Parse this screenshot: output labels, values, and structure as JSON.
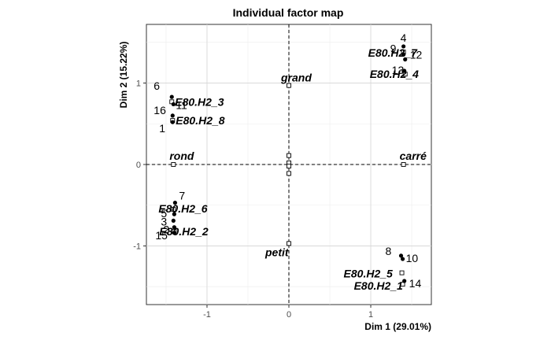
{
  "chart_data": {
    "type": "scatter",
    "title": "Individual factor map",
    "xlabel": "Dim 1 (29.01%)",
    "ylabel": "Dim 2 (15.22%)",
    "xlim": [
      -1.74,
      1.74
    ],
    "ylim": [
      -1.72,
      1.72
    ],
    "x_ticks": [
      -1,
      0,
      1
    ],
    "y_ticks": [
      -1,
      0,
      1
    ],
    "grid": true,
    "reference_lines": {
      "x": 0,
      "y": 0,
      "style": "dashed"
    },
    "individuals": [
      {
        "label": "1",
        "x": -1.42,
        "y": 0.52
      },
      {
        "label": "2",
        "x": -1.4,
        "y": -0.77
      },
      {
        "label": "3",
        "x": -1.41,
        "y": -0.69
      },
      {
        "label": "4",
        "x": 1.4,
        "y": 1.45
      },
      {
        "label": "5",
        "x": -1.4,
        "y": -0.61
      },
      {
        "label": "6",
        "x": -1.43,
        "y": 0.83
      },
      {
        "label": "7",
        "x": -1.39,
        "y": -0.47
      },
      {
        "label": "8",
        "x": 1.37,
        "y": -1.12
      },
      {
        "label": "9",
        "x": 1.4,
        "y": 1.35
      },
      {
        "label": "10",
        "x": 1.39,
        "y": -1.16
      },
      {
        "label": "11",
        "x": -1.41,
        "y": 0.74
      },
      {
        "label": "12",
        "x": 1.42,
        "y": 1.29
      },
      {
        "label": "13",
        "x": 1.41,
        "y": 1.15
      },
      {
        "label": "14",
        "x": 1.41,
        "y": -1.43
      },
      {
        "label": "15",
        "x": -1.4,
        "y": -0.84
      },
      {
        "label": "16",
        "x": -1.42,
        "y": 0.6
      }
    ],
    "groups": [
      {
        "label": "E80.H2_7",
        "x": 1.4,
        "y": 1.38
      },
      {
        "label": "E80.H2_4",
        "x": 1.42,
        "y": 1.11
      },
      {
        "label": "E80.H2_3",
        "x": -1.43,
        "y": 0.77
      },
      {
        "label": "E80.H2_8",
        "x": -1.42,
        "y": 0.54
      },
      {
        "label": "E80.H2_6",
        "x": -1.41,
        "y": -0.55
      },
      {
        "label": "E80.H2_2",
        "x": -1.4,
        "y": -0.82
      },
      {
        "label": "E80.H2_5",
        "x": 1.38,
        "y": -1.33
      },
      {
        "label": "E80.H2_1",
        "x": 1.39,
        "y": -1.47
      }
    ],
    "categories": [
      {
        "label": "grand",
        "x": 0.0,
        "y": 0.97
      },
      {
        "label": "rond",
        "x": -1.41,
        "y": 0.0
      },
      {
        "label": "carré",
        "x": 1.4,
        "y": 0.0
      },
      {
        "label": "petit",
        "x": 0.0,
        "y": -0.97
      }
    ],
    "extra_markers": [
      {
        "x": 0.0,
        "y": 0.11
      },
      {
        "x": 0.0,
        "y": -0.11
      },
      {
        "x": 0.0,
        "y": 0.02
      },
      {
        "x": 0.0,
        "y": -0.02
      }
    ]
  }
}
